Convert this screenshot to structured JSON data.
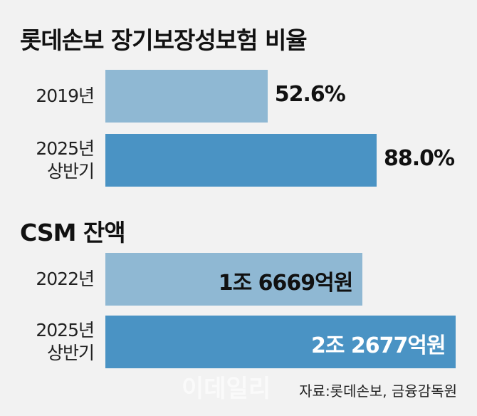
{
  "chart_data": [
    {
      "type": "bar",
      "orientation": "horizontal",
      "title": "롯데손보 장기보장성보험 비율",
      "categories": [
        "2019년",
        "2025년\n상반기"
      ],
      "values": [
        52.6,
        88.0
      ],
      "value_labels": [
        "52.6%",
        "88.0%"
      ],
      "colors": [
        "#8fb8d3",
        "#4a93c4"
      ],
      "label_position": "outside",
      "value_label_colors": [
        "#111111",
        "#111111"
      ],
      "xlim": [
        0,
        100
      ]
    },
    {
      "type": "bar",
      "orientation": "horizontal",
      "title": "CSM 잔액",
      "categories": [
        "2022년",
        "2025년\n상반기"
      ],
      "values": [
        16669,
        22677
      ],
      "value_labels": [
        "1조 6669억원",
        "2조 2677억원"
      ],
      "colors": [
        "#8fb8d3",
        "#4a93c4"
      ],
      "label_position": "inside",
      "value_label_colors": [
        "#111111",
        "#ffffff"
      ],
      "xlim": [
        0,
        25000
      ]
    }
  ],
  "watermark": "이데일리",
  "source": "자료:롯데손보, 금융감독원"
}
